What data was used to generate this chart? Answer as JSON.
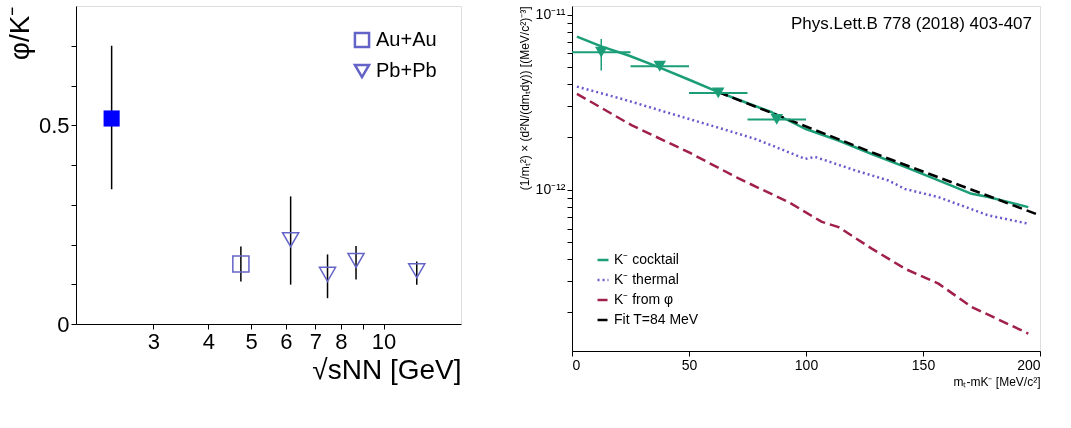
{
  "chart_data": [
    {
      "type": "scatter",
      "xlabel": "√sNN [GeV]",
      "ylabel": "φ/K⁻",
      "log": "x",
      "grid": false,
      "legend": "top right",
      "xlim": [
        2,
        15
      ],
      "xticks": [
        3,
        4,
        5,
        6,
        7,
        8,
        {
          "value": 9,
          "label": null
        },
        10
      ],
      "ylim": [
        0,
        0.8
      ],
      "yticks": [
        0,
        {
          "value": 0.1,
          "label": null
        },
        {
          "value": 0.2,
          "label": null
        },
        {
          "value": 0.3,
          "label": null
        },
        {
          "value": 0.4,
          "label": null
        },
        0.5,
        {
          "value": 0.6,
          "label": null
        },
        {
          "value": 0.7,
          "label": null
        }
      ],
      "series": [
        {
          "color": "#0000ff",
          "marker": "square",
          "x": [
            2.41
          ],
          "values": [
            0.517
          ],
          "errors": [
            [
              0.339,
              0.7
            ]
          ]
        },
        {
          "name": "Au+Au",
          "color": "#6464c8",
          "marker": "square",
          "x": [
            4.74
          ],
          "values": [
            0.151
          ],
          "errors": [
            [
              0.107,
              0.195
            ]
          ]
        },
        {
          "name": "Pb+Pb",
          "color": "#6464c8",
          "marker": "triangle",
          "x": [
            6.15,
            7.46,
            8.66,
            11.9
          ],
          "values": [
            0.212,
            0.125,
            0.16,
            0.134
          ],
          "errors": [
            [
              0.099,
              0.321
            ],
            [
              0.065,
              0.175
            ],
            [
              0.112,
              0.196
            ],
            [
              0.099,
              0.157
            ]
          ]
        }
      ]
    },
    {
      "type": "line",
      "xlabel": "mₜ-mK⁻ [MeV/c²]",
      "ylabel": "(1/mₜ²) × (d²N/(dmₜdy)) [(MeV/c²)⁻³]",
      "log": "y",
      "grid": false,
      "legend": "bottom left",
      "annotations": [
        "Phys.Lett.B 778 (2018) 403-407"
      ],
      "xlim": [
        0,
        200
      ],
      "xticks": [
        0,
        50,
        100,
        150,
        200
      ],
      "ylim": [
        1.2e-13,
        1.12e-11
      ],
      "yticks": [
        {
          "value": 2e-13,
          "label": null
        },
        {
          "value": 3e-13,
          "label": null
        },
        {
          "value": 4e-13,
          "label": null
        },
        {
          "value": 5e-13,
          "label": null
        },
        {
          "value": 6e-13,
          "label": null
        },
        {
          "value": 7e-13,
          "label": null
        },
        {
          "value": 8e-13,
          "label": null
        },
        {
          "value": 9e-13,
          "label": null
        },
        {
          "value": 1e-12,
          "label": "10⁻¹²"
        },
        {
          "value": 2e-12,
          "label": null
        },
        {
          "value": 3e-12,
          "label": null
        },
        {
          "value": 4e-12,
          "label": null
        },
        {
          "value": 5e-12,
          "label": null
        },
        {
          "value": 6e-12,
          "label": null
        },
        {
          "value": 7e-12,
          "label": null
        },
        {
          "value": 8e-12,
          "label": null
        },
        {
          "value": 9e-12,
          "label": null
        },
        {
          "value": 1e-11,
          "label": "10⁻¹¹"
        }
      ],
      "series": [
        {
          "name": "K⁻ cocktail",
          "color": "#1b9e77",
          "line_style": "solid",
          "x": [
            2.1,
            12.8,
            24.2,
            37.0,
            49.8,
            62.6,
            74.0,
            85.4,
            99.6,
            113.9,
            128.1,
            142.3,
            156.6,
            170.8,
            177.9,
            195.0
          ],
          "values": [
            7.49e-12,
            6.57e-12,
            5.84e-12,
            5.01e-12,
            4.26e-12,
            3.61e-12,
            3.16e-12,
            2.77e-12,
            2.23e-12,
            1.91e-12,
            1.6e-12,
            1.35e-12,
            1.13e-12,
            9.48e-13,
            9.08e-13,
            7.96e-13
          ]
        },
        {
          "name": "K⁻ thermal",
          "color": "#6a5acd",
          "line_style": "dotted",
          "x": [
            2.1,
            21.4,
            42.7,
            64.1,
            78.3,
            85.4,
            99.6,
            103.9,
            121.0,
            135.2,
            142.3,
            156.6,
            177.9,
            195.0
          ],
          "values": [
            3.88e-12,
            3.3e-12,
            2.71e-12,
            2.23e-12,
            1.95e-12,
            1.79e-12,
            1.5e-12,
            1.54e-12,
            1.29e-12,
            1.13e-12,
            1.01e-12,
            9.08e-13,
            7.14e-13,
            6.4e-13
          ]
        },
        {
          "name": "K⁻ from φ",
          "color": "#a0204a",
          "line_style": "dashed",
          "x": [
            2.1,
            25.6,
            49.8,
            71.2,
            92.5,
            106.8,
            113.9,
            128.1,
            142.3,
            156.6,
            170.8,
            195.0
          ],
          "values": [
            3.53e-12,
            2.33e-12,
            1.64e-12,
            1.16e-12,
            8.51e-13,
            6.55e-13,
            6.12e-13,
            4.61e-13,
            3.54e-13,
            2.91e-13,
            2.14e-13,
            1.51e-13
          ]
        },
        {
          "name": "Fit T=84 MeV",
          "color": "#000000",
          "line_style": "dashed",
          "x": [
            62.6,
            130.0,
            199.3
          ],
          "values": [
            3.61e-12,
            1.6e-12,
            7.2e-13
          ]
        },
        {
          "type": "scatter",
          "color": "#1b9e77",
          "marker": "triangle",
          "x": [
            12.5,
            37.5,
            62.5,
            87.5
          ],
          "values": [
            6.1e-12,
            5.07e-12,
            3.57e-12,
            2.52e-12
          ],
          "errors": [
            [
              4.8e-12,
              7.26e-12
            ],
            null,
            null,
            null
          ],
          "xerrors": [
            12.5,
            12.5,
            12.5,
            12.5
          ]
        }
      ]
    }
  ]
}
